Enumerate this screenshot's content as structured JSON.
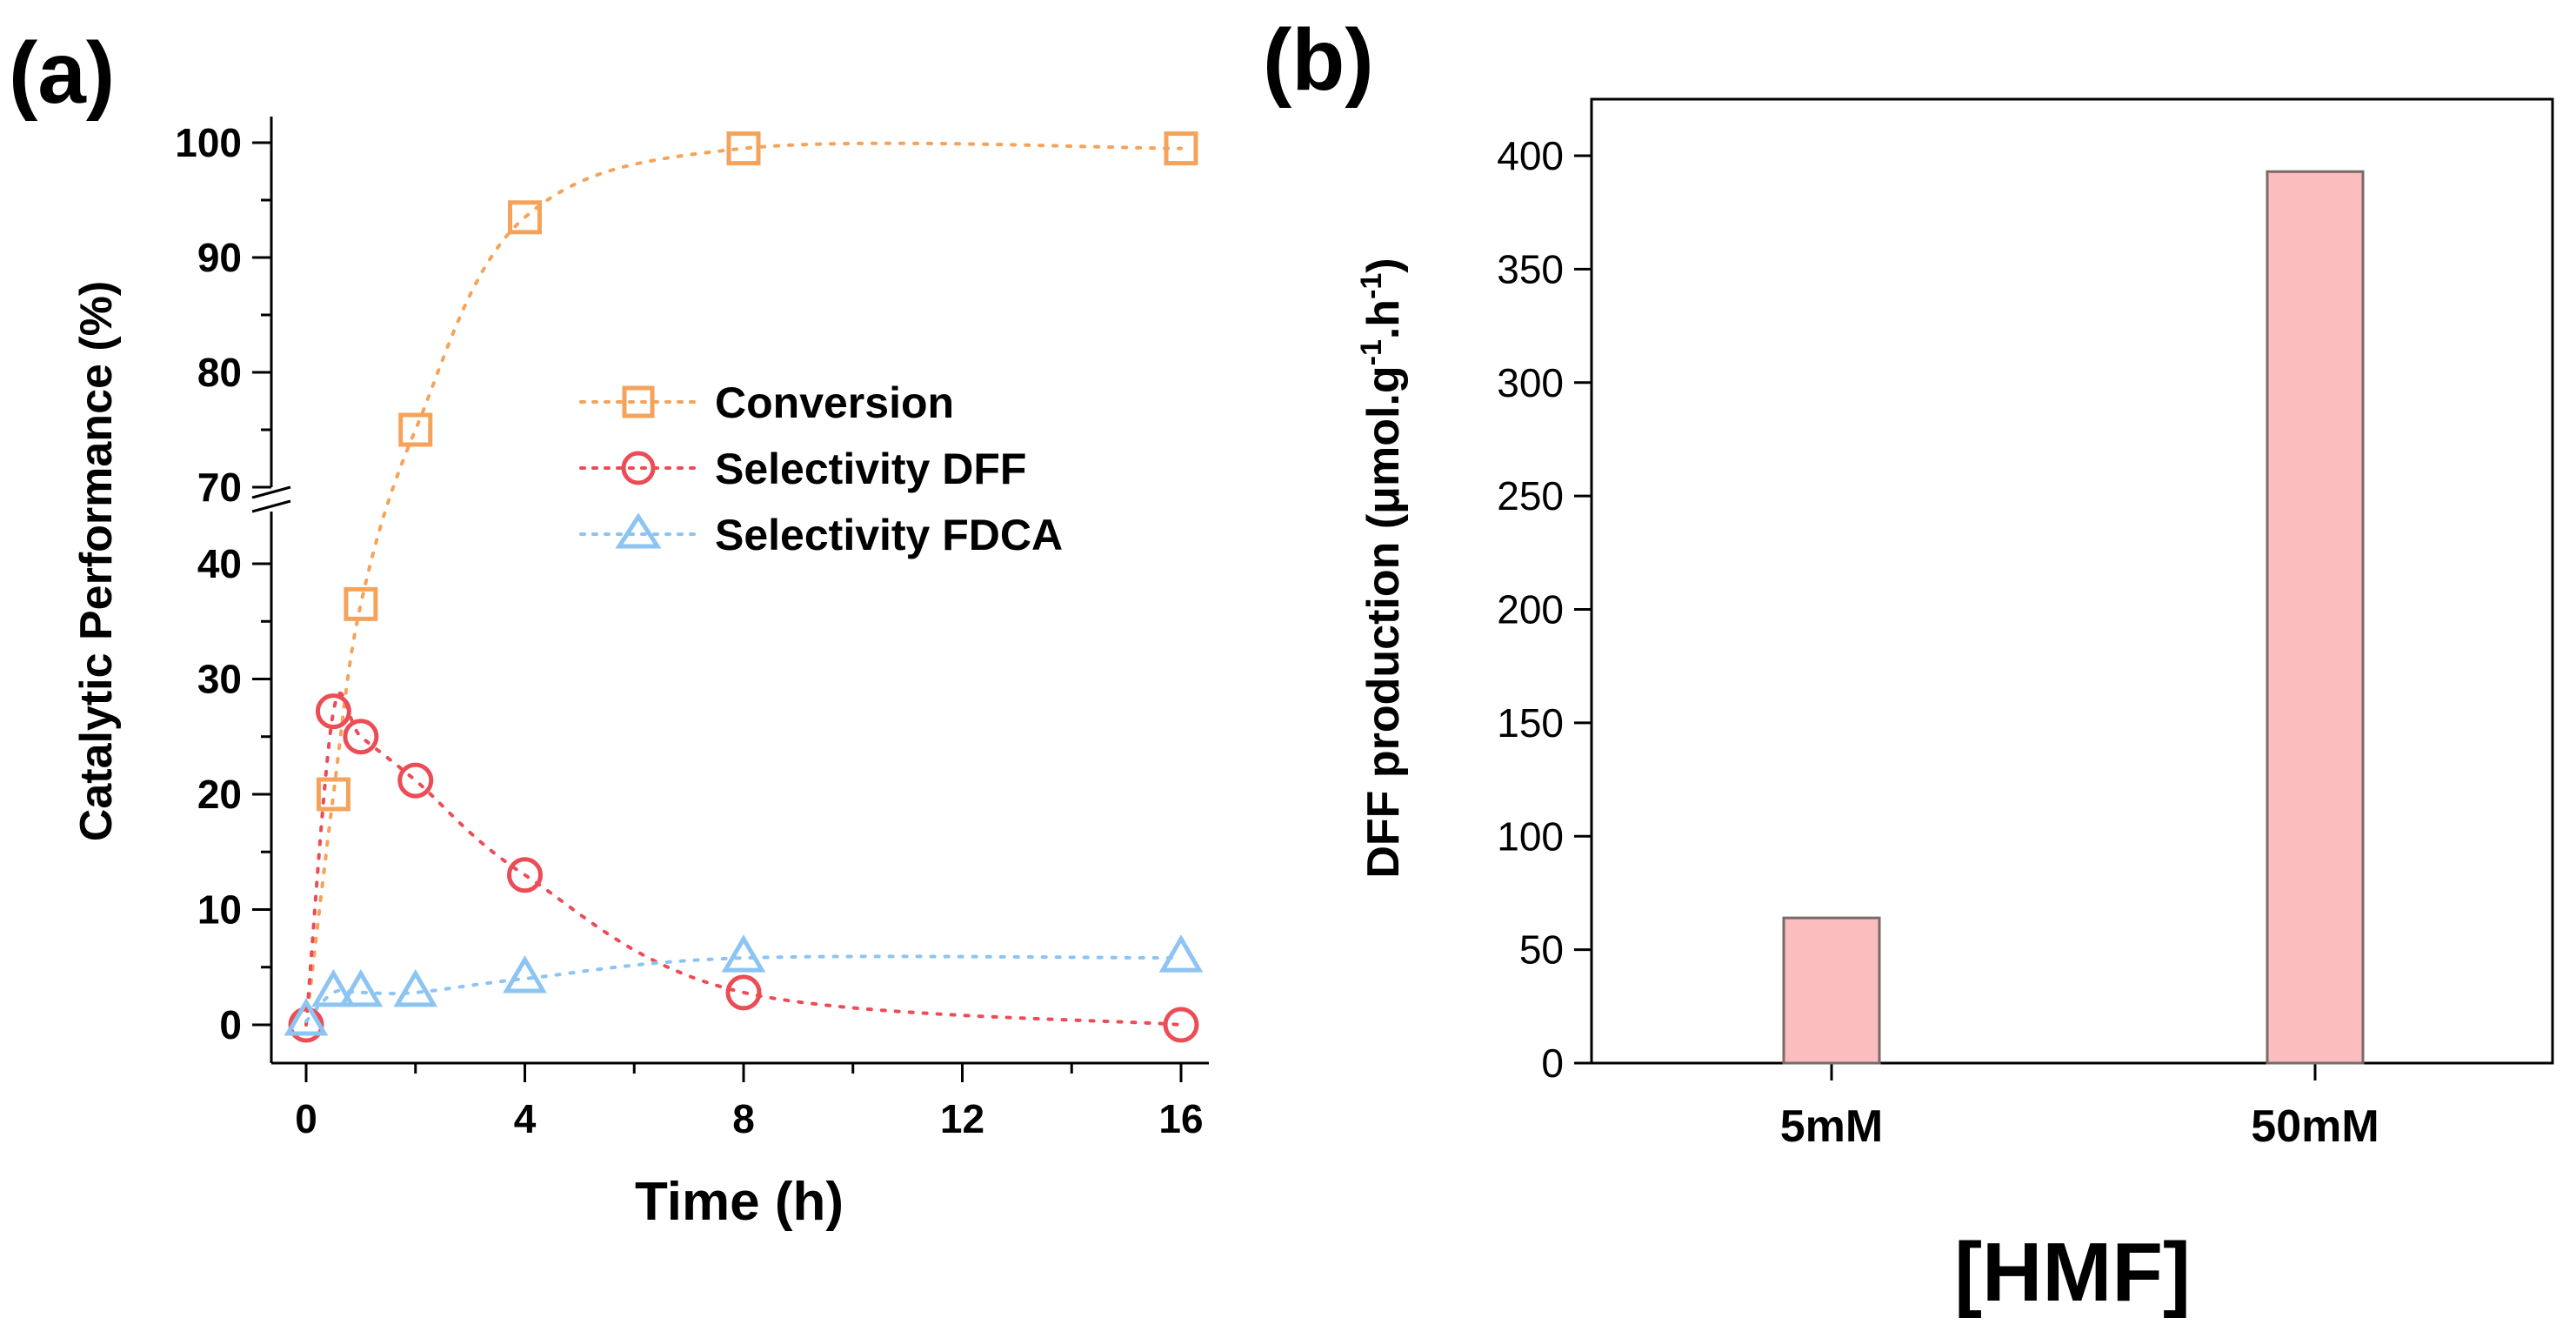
{
  "panel_labels": {
    "a": "(a)",
    "b": "(b)"
  },
  "colors": {
    "conversion": "#F5A35A",
    "dff": "#EC4C55",
    "fdca": "#8CC4F2",
    "bar_fill": "#FBBDBD",
    "bar_stroke": "#7A6A6A",
    "axis": "#000000"
  },
  "legend": {
    "conversion": "Conversion",
    "dff": "Selectivity DFF",
    "fdca": "Selectivity FDCA"
  },
  "chart_data": [
    {
      "panel": "a",
      "type": "scatter",
      "title": "",
      "xlabel": "Time (h)",
      "ylabel": "Catalytic Performance (%)",
      "xlim": [
        -0.5,
        16.5
      ],
      "x_ticks": [
        0,
        4,
        8,
        12,
        16
      ],
      "y_break": {
        "lower": [
          0,
          45
        ],
        "upper": [
          68,
          102
        ]
      },
      "y_ticks_lower": [
        0,
        10,
        20,
        30,
        40
      ],
      "y_ticks_upper": [
        70,
        80,
        90,
        100
      ],
      "series": [
        {
          "name": "Conversion",
          "marker": "square",
          "x": [
            0.5,
            1,
            2,
            4,
            8,
            16
          ],
          "y": [
            20,
            36.5,
            75,
            93.5,
            99.5,
            99.5
          ]
        },
        {
          "name": "Selectivity DFF",
          "marker": "circle",
          "x": [
            0,
            0.5,
            1,
            2,
            4,
            8,
            16
          ],
          "y": [
            0,
            27.2,
            25,
            21.2,
            13,
            2.8,
            0
          ]
        },
        {
          "name": "Selectivity FDCA",
          "marker": "triangle",
          "x": [
            0,
            0.5,
            1,
            2,
            4,
            8,
            16
          ],
          "y": [
            0.3,
            2.8,
            2.8,
            2.8,
            4,
            5.8,
            5.8
          ]
        }
      ]
    },
    {
      "panel": "b",
      "type": "bar",
      "title": "",
      "xlabel": "[HMF]",
      "ylabel_main": "DFF production (μmol.g",
      "ylabel_sup1": "-1",
      "ylabel_mid": ".h",
      "ylabel_sup2": "-1",
      "ylabel_end": ")",
      "categories": [
        "5mM",
        "50mM"
      ],
      "values": [
        64,
        393
      ],
      "ylim": [
        0,
        430
      ],
      "y_ticks": [
        0,
        50,
        100,
        150,
        200,
        250,
        300,
        350,
        400
      ]
    }
  ]
}
